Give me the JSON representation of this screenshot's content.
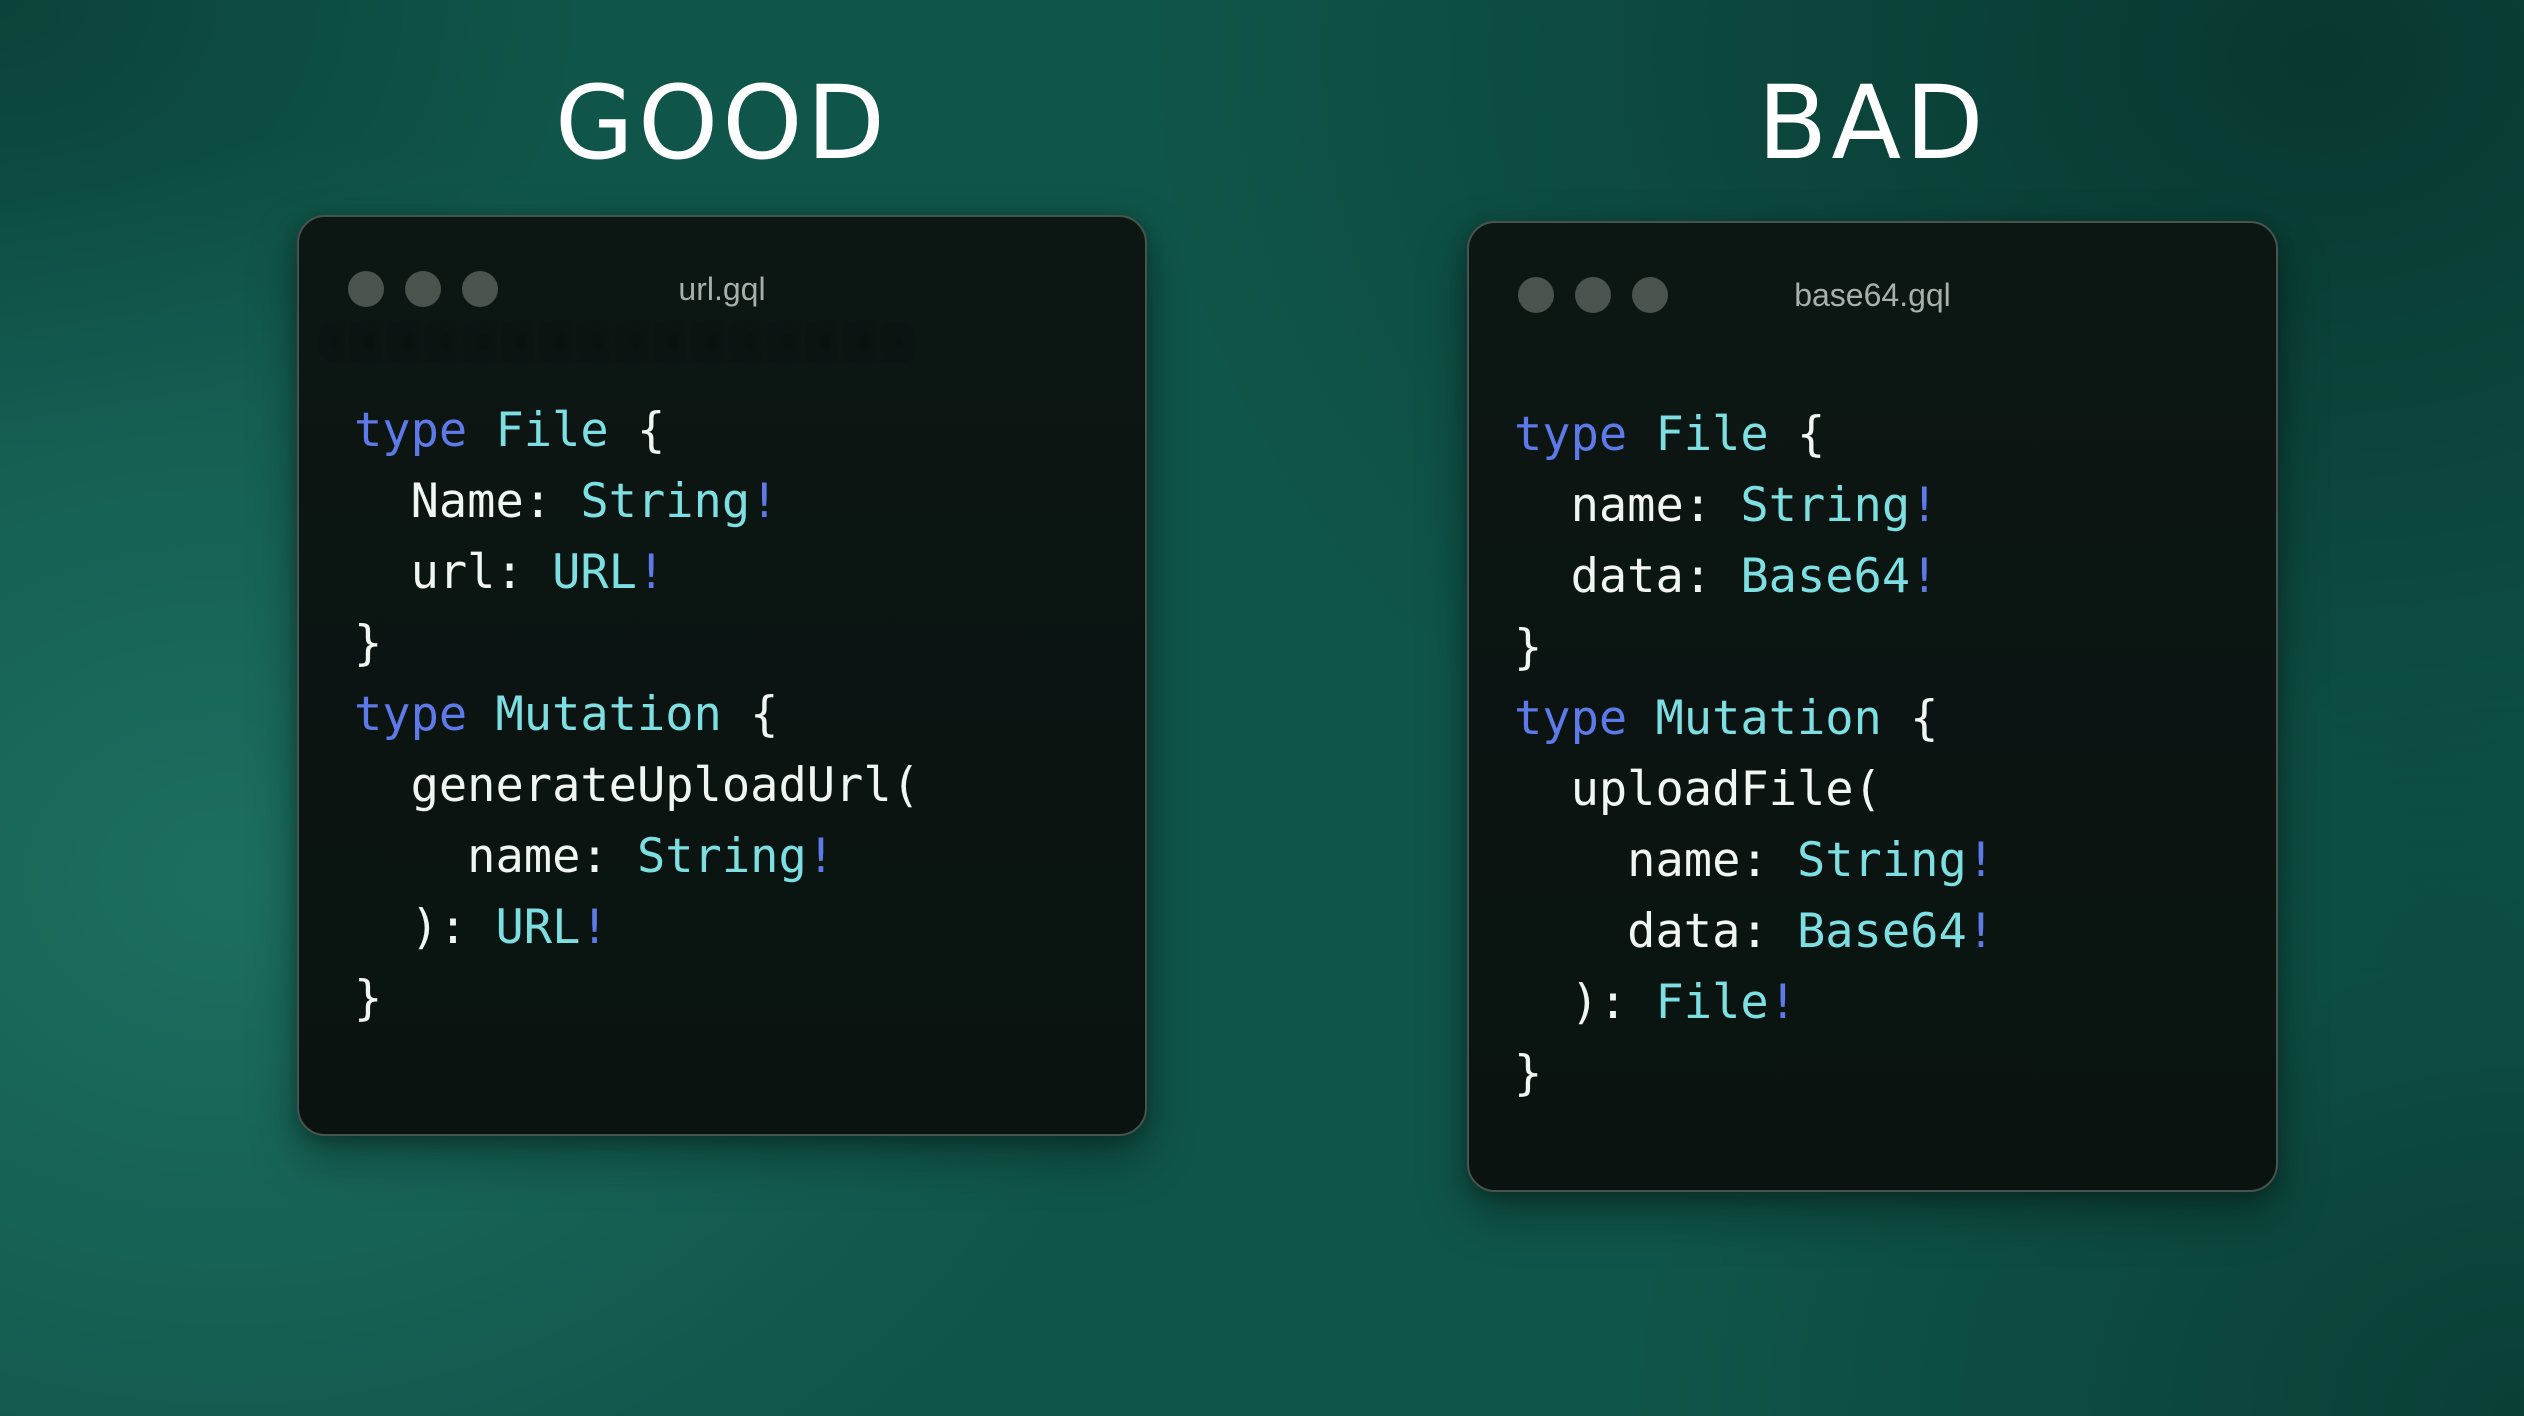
{
  "colors": {
    "background_base": "#105549",
    "background_light": "#1E7464",
    "background_dark": "#09433A",
    "window_background": "#0C1613",
    "window_border": "#49534E",
    "titlebar_dot": "#4A534E",
    "window_title_text": "#A9B0AC",
    "heading_text": "#FFFFFF",
    "syntax_keyword": "#5E79E8",
    "syntax_typename": "#7EDFE2",
    "syntax_bang": "#5E79E8",
    "syntax_plain": "#F2F6F3"
  },
  "panels": [
    {
      "heading": "GOOD",
      "window": {
        "title": "url.gql",
        "dots": 3,
        "code": [
          [
            {
              "t": "type",
              "c": "kw"
            },
            {
              "t": " ",
              "c": "plain"
            },
            {
              "t": "File",
              "c": "type"
            },
            {
              "t": " {",
              "c": "plain"
            }
          ],
          [
            {
              "t": "  Name: ",
              "c": "plain"
            },
            {
              "t": "String",
              "c": "type"
            },
            {
              "t": "!",
              "c": "bang"
            }
          ],
          [
            {
              "t": "  url: ",
              "c": "plain"
            },
            {
              "t": "URL",
              "c": "type"
            },
            {
              "t": "!",
              "c": "bang"
            }
          ],
          [
            {
              "t": "}",
              "c": "plain"
            }
          ],
          [
            {
              "t": "type",
              "c": "kw"
            },
            {
              "t": " ",
              "c": "plain"
            },
            {
              "t": "Mutation",
              "c": "type"
            },
            {
              "t": " {",
              "c": "plain"
            }
          ],
          [
            {
              "t": "  generateUploadUrl(",
              "c": "plain"
            }
          ],
          [
            {
              "t": "    name: ",
              "c": "plain"
            },
            {
              "t": "String",
              "c": "type"
            },
            {
              "t": "!",
              "c": "bang"
            }
          ],
          [
            {
              "t": "  ): ",
              "c": "plain"
            },
            {
              "t": "URL",
              "c": "type"
            },
            {
              "t": "!",
              "c": "bang"
            }
          ],
          [
            {
              "t": "}",
              "c": "plain"
            }
          ]
        ]
      }
    },
    {
      "heading": "BAD",
      "window": {
        "title": "base64.gql",
        "dots": 3,
        "code": [
          [
            {
              "t": "type",
              "c": "kw"
            },
            {
              "t": " ",
              "c": "plain"
            },
            {
              "t": "File",
              "c": "type"
            },
            {
              "t": " {",
              "c": "plain"
            }
          ],
          [
            {
              "t": "  name: ",
              "c": "plain"
            },
            {
              "t": "String",
              "c": "type"
            },
            {
              "t": "!",
              "c": "bang"
            }
          ],
          [
            {
              "t": "  data: ",
              "c": "plain"
            },
            {
              "t": "Base64",
              "c": "type"
            },
            {
              "t": "!",
              "c": "bang"
            }
          ],
          [
            {
              "t": "}",
              "c": "plain"
            }
          ],
          [
            {
              "t": "type",
              "c": "kw"
            },
            {
              "t": " ",
              "c": "plain"
            },
            {
              "t": "Mutation",
              "c": "type"
            },
            {
              "t": " {",
              "c": "plain"
            }
          ],
          [
            {
              "t": "  uploadFile(",
              "c": "plain"
            }
          ],
          [
            {
              "t": "    name: ",
              "c": "plain"
            },
            {
              "t": "String",
              "c": "type"
            },
            {
              "t": "!",
              "c": "bang"
            }
          ],
          [
            {
              "t": "    data: ",
              "c": "plain"
            },
            {
              "t": "Base64",
              "c": "type"
            },
            {
              "t": "!",
              "c": "bang"
            }
          ],
          [
            {
              "t": "  ): ",
              "c": "plain"
            },
            {
              "t": "File",
              "c": "type"
            },
            {
              "t": "!",
              "c": "bang"
            }
          ],
          [
            {
              "t": "}",
              "c": "plain"
            }
          ]
        ]
      }
    }
  ]
}
